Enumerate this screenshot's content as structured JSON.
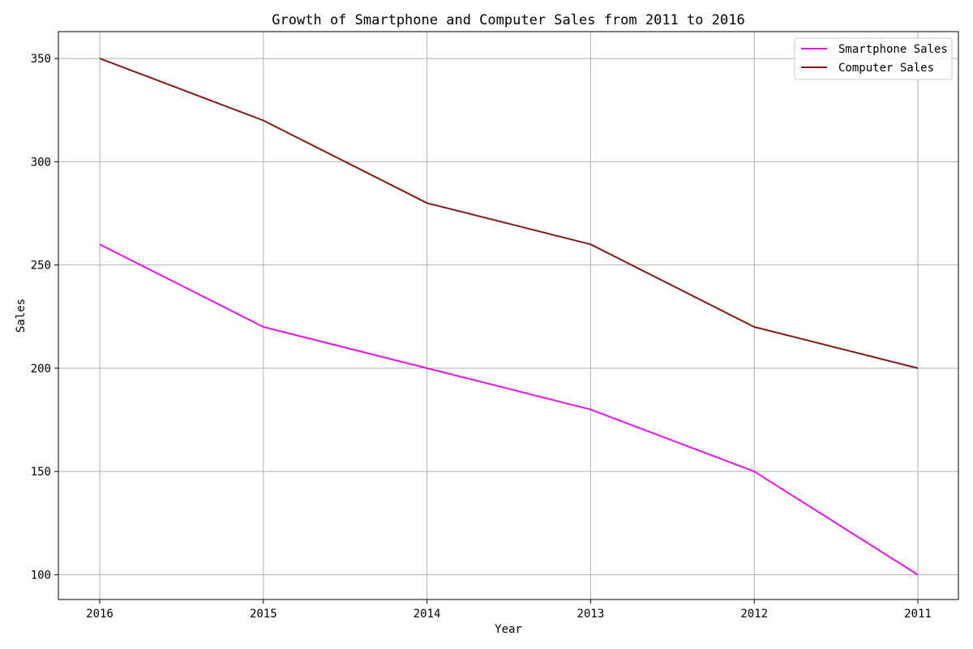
{
  "chart_data": {
    "type": "line",
    "title": "Growth of Smartphone and Computer Sales from 2011 to 2016",
    "xlabel": "Year",
    "ylabel": "Sales",
    "categories": [
      "2016",
      "2015",
      "2014",
      "2013",
      "2012",
      "2011"
    ],
    "ylim": [
      88,
      363
    ],
    "yticks": [
      "100",
      "150",
      "200",
      "250",
      "300",
      "350"
    ],
    "grid": true,
    "legend_position": "top-right",
    "series": [
      {
        "name": "Smartphone Sales",
        "color": "#ee11ee",
        "values": [
          260,
          220,
          200,
          180,
          150,
          100
        ]
      },
      {
        "name": "Computer Sales",
        "color": "#861717",
        "values": [
          350,
          320,
          280,
          260,
          220,
          200
        ]
      }
    ]
  }
}
